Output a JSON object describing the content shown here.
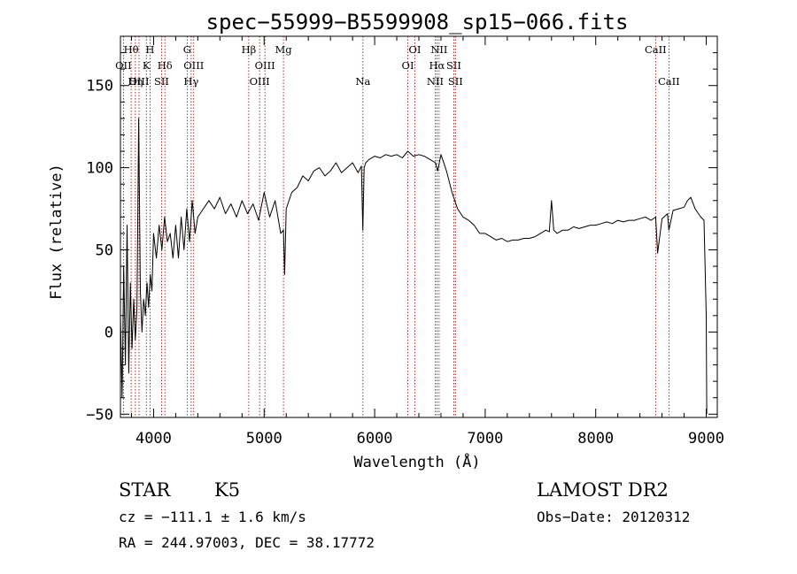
{
  "chart_data": {
    "type": "line",
    "title": "spec−55999−B5599908_sp15−066.fits",
    "xlabel": "Wavelength (Å)",
    "ylabel": "Flux (relative)",
    "xlim": [
      3700,
      9100
    ],
    "ylim": [
      -52,
      180
    ],
    "x_ticks": [
      4000,
      5000,
      6000,
      7000,
      8000,
      9000
    ],
    "x_tick_labels": [
      "4000",
      "5000",
      "6000",
      "7000",
      "8000",
      "9000"
    ],
    "y_ticks": [
      -50,
      0,
      50,
      100,
      150
    ],
    "y_tick_labels": [
      "−50",
      "0",
      "50",
      "100",
      "150"
    ],
    "grid": false,
    "series": [
      {
        "x": [
          3700,
          3715,
          3730,
          3745,
          3760,
          3775,
          3790,
          3805,
          3820,
          3835,
          3850,
          3865,
          3880,
          3895,
          3910,
          3925,
          3940,
          3955,
          3970,
          3985,
          4000,
          4025,
          4050,
          4075,
          4100,
          4125,
          4150,
          4175,
          4200,
          4225,
          4250,
          4275,
          4300,
          4325,
          4350,
          4375,
          4400,
          4450,
          4500,
          4550,
          4600,
          4650,
          4700,
          4750,
          4800,
          4850,
          4900,
          4950,
          5000,
          5050,
          5100,
          5150,
          5175,
          5185,
          5200,
          5250,
          5300,
          5350,
          5400,
          5450,
          5500,
          5550,
          5600,
          5650,
          5700,
          5750,
          5800,
          5850,
          5880,
          5893,
          5905,
          5920,
          5950,
          6000,
          6050,
          6100,
          6150,
          6200,
          6250,
          6300,
          6350,
          6400,
          6450,
          6500,
          6550,
          6570,
          6600,
          6650,
          6700,
          6750,
          6800,
          6850,
          6900,
          6950,
          7000,
          7050,
          7100,
          7150,
          7200,
          7250,
          7300,
          7350,
          7400,
          7450,
          7500,
          7550,
          7580,
          7600,
          7620,
          7650,
          7700,
          7750,
          7800,
          7850,
          7900,
          7950,
          8000,
          8050,
          8100,
          8150,
          8200,
          8250,
          8300,
          8350,
          8400,
          8450,
          8500,
          8542,
          8560,
          8600,
          8650,
          8662,
          8700,
          8750,
          8800,
          8830,
          8860,
          8900,
          8950,
          8980,
          9000,
          9005
        ],
        "y": [
          10,
          -40,
          40,
          -20,
          65,
          -25,
          30,
          -10,
          20,
          -5,
          15,
          130,
          25,
          0,
          20,
          10,
          30,
          15,
          35,
          25,
          60,
          45,
          65,
          50,
          70,
          55,
          60,
          45,
          65,
          45,
          70,
          50,
          75,
          55,
          80,
          60,
          70,
          75,
          80,
          75,
          82,
          72,
          78,
          70,
          80,
          72,
          78,
          68,
          85,
          70,
          80,
          60,
          62,
          35,
          75,
          85,
          88,
          95,
          92,
          98,
          100,
          95,
          98,
          103,
          97,
          100,
          103,
          97,
          101,
          62,
          100,
          103,
          105,
          107,
          106,
          108,
          107,
          108,
          106,
          110,
          107,
          108,
          107,
          105,
          103,
          98,
          108,
          98,
          85,
          75,
          70,
          68,
          65,
          60,
          60,
          58,
          56,
          57,
          55,
          56,
          56,
          57,
          57,
          58,
          60,
          62,
          61,
          80,
          62,
          60,
          62,
          62,
          64,
          63,
          64,
          65,
          65,
          66,
          67,
          66,
          68,
          67,
          68,
          68,
          69,
          70,
          68,
          70,
          48,
          69,
          72,
          62,
          74,
          75,
          76,
          80,
          82,
          75,
          70,
          68,
          10,
          -50
        ]
      }
    ],
    "line_markers": [
      {
        "label": "Hθ",
        "x": 3797,
        "row": 1
      },
      {
        "label": "OII",
        "x": 3727,
        "row": 2
      },
      {
        "label": "OIII",
        "x": 3868,
        "row": 3
      },
      {
        "label": "Hη",
        "x": 3835,
        "row": 3
      },
      {
        "label": "H",
        "x": 3968,
        "row": 1
      },
      {
        "label": "K",
        "x": 3934,
        "row": 2
      },
      {
        "label": "Hδ",
        "x": 4102,
        "row": 2
      },
      {
        "label": "SII",
        "x": 4072,
        "row": 3
      },
      {
        "label": "G",
        "x": 4304,
        "row": 1
      },
      {
        "label": "OIII",
        "x": 4363,
        "row": 2
      },
      {
        "label": "Hγ",
        "x": 4340,
        "row": 3
      },
      {
        "label": "Hβ",
        "x": 4861,
        "row": 1
      },
      {
        "label": "OIII",
        "x": 5007,
        "row": 2
      },
      {
        "label": "OIII",
        "x": 4959,
        "row": 3
      },
      {
        "label": "Mg",
        "x": 5175,
        "row": 1
      },
      {
        "label": "Na",
        "x": 5894,
        "row": 3
      },
      {
        "label": "OI",
        "x": 6364,
        "row": 1
      },
      {
        "label": "OI",
        "x": 6300,
        "row": 2
      },
      {
        "label": "NII",
        "x": 6583,
        "row": 1
      },
      {
        "label": "Hα",
        "x": 6563,
        "row": 2
      },
      {
        "label": "SII",
        "x": 6716,
        "row": 2
      },
      {
        "label": "NII",
        "x": 6548,
        "row": 3
      },
      {
        "label": "SII",
        "x": 6731,
        "row": 3
      },
      {
        "label": "CaII",
        "x": 8542,
        "row": 1
      },
      {
        "label": "CaII",
        "x": 8662,
        "row": 3
      }
    ]
  },
  "info": {
    "object_class": "STAR",
    "subclass": "K5",
    "survey": "LAMOST DR2",
    "cz": "cz = −111.1 ± 1.6 km/s",
    "obs_date": "Obs−Date: 20120312",
    "coords": "RA = 244.97003, DEC =  38.17772"
  },
  "colors": {
    "spectrum": "#000000",
    "marker_line": "#8b0000",
    "axis": "#000000"
  }
}
